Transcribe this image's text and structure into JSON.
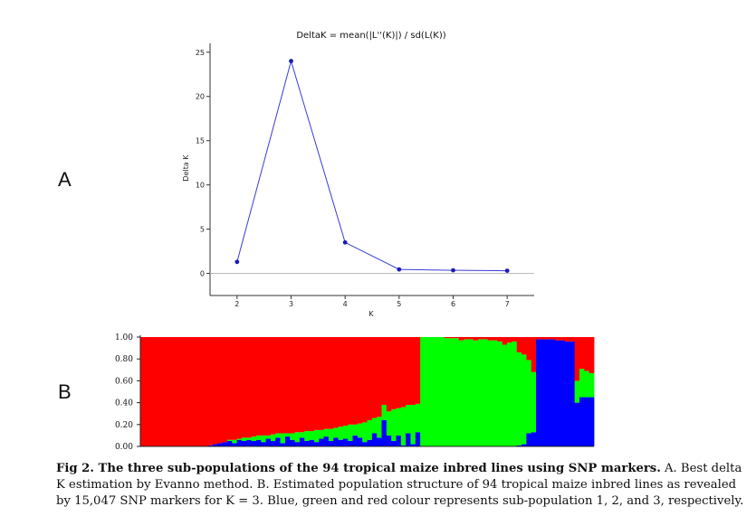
{
  "panel_labels": {
    "a": "A",
    "b": "B"
  },
  "chart_data": [
    {
      "type": "line",
      "title": "DeltaK = mean(|L''(K)|) / sd(L(K))",
      "xlabel": "K",
      "ylabel": "Delta K",
      "x": [
        2,
        3,
        4,
        5,
        6,
        7
      ],
      "y": [
        1.3,
        24.0,
        3.5,
        0.45,
        0.35,
        0.3
      ],
      "xlim": [
        1.5,
        7.5
      ],
      "ylim": [
        -2.5,
        26
      ],
      "xticks": [
        "2",
        "3",
        "4",
        "5",
        "6",
        "7"
      ],
      "yticks": [
        "0",
        "5",
        "10",
        "15",
        "20",
        "25"
      ],
      "line_color": "#3b3bd6",
      "zero_line_color": "#bbbbbb"
    },
    {
      "type": "bar",
      "stacked": true,
      "ylim": [
        0,
        1
      ],
      "yticks": [
        "0.00",
        "0.20",
        "0.40",
        "0.60",
        "0.80",
        "1.00"
      ],
      "colors": {
        "blue": "#0000ff",
        "green": "#00ff00",
        "red": "#ff0000"
      },
      "individuals": 94,
      "blue": [
        0,
        0,
        0,
        0,
        0,
        0,
        0,
        0,
        0,
        0,
        0,
        0,
        0,
        0,
        0.01,
        0.02,
        0.03,
        0.04,
        0.05,
        0.03,
        0.06,
        0.05,
        0.06,
        0.05,
        0.06,
        0.04,
        0.07,
        0.05,
        0.08,
        0.03,
        0.09,
        0.06,
        0.04,
        0.08,
        0.05,
        0.06,
        0.04,
        0.07,
        0.09,
        0.05,
        0.08,
        0.06,
        0.07,
        0.05,
        0.1,
        0.08,
        0.04,
        0.06,
        0.12,
        0.08,
        0.24,
        0.1,
        0.05,
        0.1,
        0.01,
        0.12,
        0.02,
        0.13,
        0,
        0,
        0,
        0,
        0,
        0,
        0,
        0,
        0,
        0,
        0,
        0,
        0,
        0,
        0,
        0,
        0,
        0,
        0,
        0,
        0.01,
        0.02,
        0.12,
        0.13,
        0.98,
        0.98,
        0.98,
        0.98,
        0.97,
        0.97,
        0.96,
        0.96,
        0.4,
        0.45,
        0.45,
        0.45
      ],
      "green": [
        0,
        0,
        0,
        0,
        0,
        0,
        0,
        0,
        0,
        0,
        0,
        0,
        0,
        0,
        0,
        0,
        0,
        0,
        0.01,
        0.03,
        0.01,
        0.03,
        0.02,
        0.04,
        0.04,
        0.06,
        0.03,
        0.06,
        0.04,
        0.09,
        0.03,
        0.06,
        0.09,
        0.05,
        0.09,
        0.08,
        0.11,
        0.08,
        0.07,
        0.11,
        0.09,
        0.12,
        0.12,
        0.15,
        0.1,
        0.13,
        0.18,
        0.18,
        0.14,
        0.19,
        0.14,
        0.22,
        0.29,
        0.25,
        0.35,
        0.26,
        0.36,
        0.26,
        1.0,
        1.0,
        1.0,
        1.0,
        1.0,
        0.99,
        0.99,
        0.99,
        0.97,
        0.98,
        0.98,
        0.97,
        0.98,
        0.98,
        0.97,
        0.97,
        0.96,
        0.93,
        0.95,
        0.96,
        0.85,
        0.82,
        0.67,
        0.55,
        0,
        0,
        0,
        0,
        0,
        0,
        0,
        0,
        0.2,
        0.26,
        0.24,
        0.22
      ],
      "red": [
        1.0,
        1.0,
        1.0,
        1.0,
        1.0,
        1.0,
        1.0,
        1.0,
        1.0,
        1.0,
        1.0,
        1.0,
        1.0,
        1.0,
        0.99,
        0.98,
        0.97,
        0.96,
        0.94,
        0.94,
        0.93,
        0.92,
        0.92,
        0.91,
        0.9,
        0.9,
        0.9,
        0.89,
        0.88,
        0.88,
        0.88,
        0.88,
        0.87,
        0.87,
        0.86,
        0.86,
        0.85,
        0.85,
        0.84,
        0.84,
        0.83,
        0.82,
        0.81,
        0.8,
        0.8,
        0.79,
        0.78,
        0.76,
        0.74,
        0.73,
        0.62,
        0.68,
        0.66,
        0.65,
        0.64,
        0.62,
        0.62,
        0.61,
        0,
        0,
        0,
        0,
        0,
        0.01,
        0.01,
        0.01,
        0.03,
        0.02,
        0.02,
        0.03,
        0.02,
        0.02,
        0.03,
        0.03,
        0.04,
        0.07,
        0.05,
        0.04,
        0.14,
        0.16,
        0.21,
        0.32,
        0.02,
        0.02,
        0.02,
        0.02,
        0.03,
        0.03,
        0.04,
        0.04,
        0.4,
        0.29,
        0.31,
        0.33
      ]
    }
  ],
  "caption": {
    "bold": "Fig 2. The three sub-populations of the 94 tropical maize inbred lines using SNP markers.",
    "text": " A. Best delta K estimation by Evanno method. B. Estimated population structure of 94 tropical maize inbred lines as revealed by 15,047 SNP markers for K = 3. Blue, green and red colour represents sub-population 1, 2, and 3, respectively."
  }
}
